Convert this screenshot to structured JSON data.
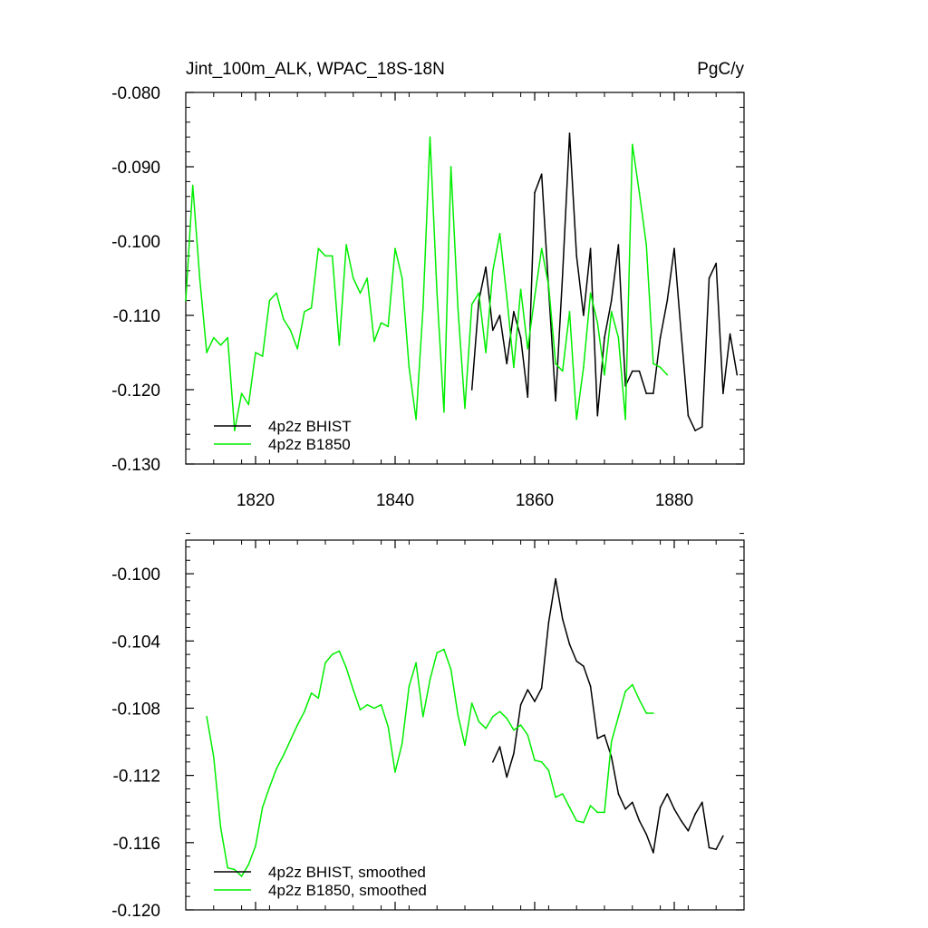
{
  "colors": {
    "bhist": "#000000",
    "b1850": "#00ee00",
    "axis": "#000000"
  },
  "chart_data": [
    {
      "type": "line",
      "title": "Jint_100m_ALK, WPAC_18S-18N",
      "title_right": "PgC/y",
      "xlabel": "",
      "ylabel": "",
      "xlim": [
        1810,
        1890
      ],
      "ylim": [
        -0.13,
        -0.08
      ],
      "x_ticks": [
        1820,
        1840,
        1860,
        1880
      ],
      "x_tick_labels": [
        "1820",
        "1840",
        "1860",
        "1880"
      ],
      "y_ticks": [
        -0.13,
        -0.12,
        -0.11,
        -0.1,
        -0.09,
        -0.08
      ],
      "y_tick_labels": [
        "-0.130",
        "-0.120",
        "-0.110",
        "-0.100",
        "-0.090",
        "-0.080"
      ],
      "grid": false,
      "legend_position": "bottom-left",
      "series": [
        {
          "name": "4p2z BHIST",
          "color": "#000000",
          "x": [
            1851,
            1852,
            1853,
            1854,
            1855,
            1856,
            1857,
            1858,
            1859,
            1860,
            1861,
            1862,
            1863,
            1864,
            1865,
            1866,
            1867,
            1868,
            1869,
            1870,
            1871,
            1872,
            1873,
            1874,
            1875,
            1876,
            1877,
            1878,
            1879,
            1880,
            1881,
            1882,
            1883,
            1884,
            1885,
            1886,
            1887,
            1888,
            1889
          ],
          "y": [
            -0.12,
            -0.108,
            -0.1035,
            -0.112,
            -0.11,
            -0.1165,
            -0.1095,
            -0.113,
            -0.121,
            -0.0935,
            -0.091,
            -0.1065,
            -0.1215,
            -0.1045,
            -0.0855,
            -0.102,
            -0.11,
            -0.101,
            -0.1235,
            -0.113,
            -0.108,
            -0.1005,
            -0.1195,
            -0.1175,
            -0.1175,
            -0.1205,
            -0.1205,
            -0.113,
            -0.108,
            -0.101,
            -0.1125,
            -0.1235,
            -0.1255,
            -0.125,
            -0.105,
            -0.103,
            -0.1205,
            -0.1125,
            -0.118
          ]
        },
        {
          "name": "4p2z B1850",
          "color": "#00ee00",
          "x": [
            1810,
            1811,
            1812,
            1813,
            1814,
            1815,
            1816,
            1817,
            1818,
            1819,
            1820,
            1821,
            1822,
            1823,
            1824,
            1825,
            1826,
            1827,
            1828,
            1829,
            1830,
            1831,
            1832,
            1833,
            1834,
            1835,
            1836,
            1837,
            1838,
            1839,
            1840,
            1841,
            1842,
            1843,
            1844,
            1845,
            1846,
            1847,
            1848,
            1849,
            1850,
            1851,
            1852,
            1853,
            1854,
            1855,
            1856,
            1857,
            1858,
            1859,
            1860,
            1861,
            1862,
            1863,
            1864,
            1865,
            1866,
            1867,
            1868,
            1869,
            1870,
            1871,
            1872,
            1873,
            1874,
            1875,
            1876,
            1877,
            1878,
            1879
          ],
          "y": [
            -0.108,
            -0.0925,
            -0.105,
            -0.115,
            -0.113,
            -0.114,
            -0.113,
            -0.1255,
            -0.1205,
            -0.122,
            -0.115,
            -0.1155,
            -0.108,
            -0.107,
            -0.1105,
            -0.112,
            -0.1145,
            -0.1095,
            -0.109,
            -0.101,
            -0.102,
            -0.102,
            -0.114,
            -0.1005,
            -0.105,
            -0.107,
            -0.105,
            -0.1135,
            -0.111,
            -0.1115,
            -0.101,
            -0.105,
            -0.117,
            -0.124,
            -0.109,
            -0.086,
            -0.107,
            -0.123,
            -0.09,
            -0.109,
            -0.1225,
            -0.1085,
            -0.107,
            -0.115,
            -0.104,
            -0.099,
            -0.1075,
            -0.117,
            -0.1065,
            -0.1145,
            -0.1075,
            -0.101,
            -0.106,
            -0.1165,
            -0.1175,
            -0.1095,
            -0.124,
            -0.117,
            -0.107,
            -0.111,
            -0.118,
            -0.1095,
            -0.113,
            -0.124,
            -0.087,
            -0.0935,
            -0.1005,
            -0.1165,
            -0.117,
            -0.118
          ]
        }
      ]
    },
    {
      "type": "line",
      "title": "",
      "xlabel": "",
      "ylabel": "",
      "xlim": [
        1810,
        1890
      ],
      "ylim": [
        -0.12,
        -0.098
      ],
      "x_ticks": [
        1820,
        1840,
        1860,
        1880
      ],
      "y_ticks": [
        -0.12,
        -0.116,
        -0.112,
        -0.108,
        -0.104,
        -0.1
      ],
      "y_tick_labels": [
        "-0.120",
        "-0.116",
        "-0.112",
        "-0.108",
        "-0.104",
        "-0.100"
      ],
      "grid": false,
      "legend_position": "bottom-left",
      "series": [
        {
          "name": "4p2z BHIST, smoothed",
          "color": "#000000",
          "x": [
            1854,
            1855,
            1856,
            1857,
            1858,
            1859,
            1860,
            1861,
            1862,
            1863,
            1864,
            1865,
            1866,
            1867,
            1868,
            1869,
            1870,
            1871,
            1872,
            1873,
            1874,
            1875,
            1876,
            1877,
            1878,
            1879,
            1880,
            1881,
            1882,
            1883,
            1884,
            1885,
            1886,
            1887
          ],
          "y": [
            -0.1112,
            -0.1103,
            -0.1121,
            -0.1107,
            -0.1078,
            -0.1069,
            -0.1076,
            -0.1068,
            -0.1029,
            -0.1003,
            -0.1027,
            -0.1042,
            -0.1052,
            -0.1055,
            -0.1067,
            -0.1098,
            -0.1096,
            -0.1109,
            -0.1131,
            -0.114,
            -0.1136,
            -0.1147,
            -0.1155,
            -0.1166,
            -0.1139,
            -0.1131,
            -0.114,
            -0.1147,
            -0.1153,
            -0.1143,
            -0.1136,
            -0.1163,
            -0.1164,
            -0.1156
          ]
        },
        {
          "name": "4p2z B1850, smoothed",
          "color": "#00ee00",
          "x": [
            1813,
            1814,
            1815,
            1816,
            1817,
            1818,
            1819,
            1820,
            1821,
            1822,
            1823,
            1824,
            1825,
            1826,
            1827,
            1828,
            1829,
            1830,
            1831,
            1832,
            1833,
            1834,
            1835,
            1836,
            1837,
            1838,
            1839,
            1840,
            1841,
            1842,
            1843,
            1844,
            1845,
            1846,
            1847,
            1848,
            1849,
            1850,
            1851,
            1852,
            1853,
            1854,
            1855,
            1856,
            1857,
            1858,
            1859,
            1860,
            1861,
            1862,
            1863,
            1864,
            1865,
            1866,
            1867,
            1868,
            1869,
            1870,
            1871,
            1872,
            1873,
            1874,
            1875,
            1876,
            1877
          ],
          "y": [
            -0.1085,
            -0.1109,
            -0.1151,
            -0.1175,
            -0.1176,
            -0.118,
            -0.1173,
            -0.1162,
            -0.1139,
            -0.1127,
            -0.1116,
            -0.1108,
            -0.1099,
            -0.109,
            -0.1082,
            -0.1071,
            -0.1074,
            -0.1053,
            -0.1048,
            -0.1046,
            -0.1056,
            -0.1069,
            -0.1081,
            -0.1078,
            -0.108,
            -0.1078,
            -0.1091,
            -0.1118,
            -0.1101,
            -0.1067,
            -0.1053,
            -0.1085,
            -0.1063,
            -0.1047,
            -0.1045,
            -0.1057,
            -0.1084,
            -0.1102,
            -0.1077,
            -0.1088,
            -0.1092,
            -0.1085,
            -0.1082,
            -0.1086,
            -0.1093,
            -0.109,
            -0.1096,
            -0.1111,
            -0.1112,
            -0.1117,
            -0.1133,
            -0.1131,
            -0.1139,
            -0.1147,
            -0.1148,
            -0.1138,
            -0.1142,
            -0.1142,
            -0.11,
            -0.1085,
            -0.107,
            -0.1066,
            -0.1075,
            -0.1083,
            -0.1083
          ]
        }
      ]
    }
  ]
}
